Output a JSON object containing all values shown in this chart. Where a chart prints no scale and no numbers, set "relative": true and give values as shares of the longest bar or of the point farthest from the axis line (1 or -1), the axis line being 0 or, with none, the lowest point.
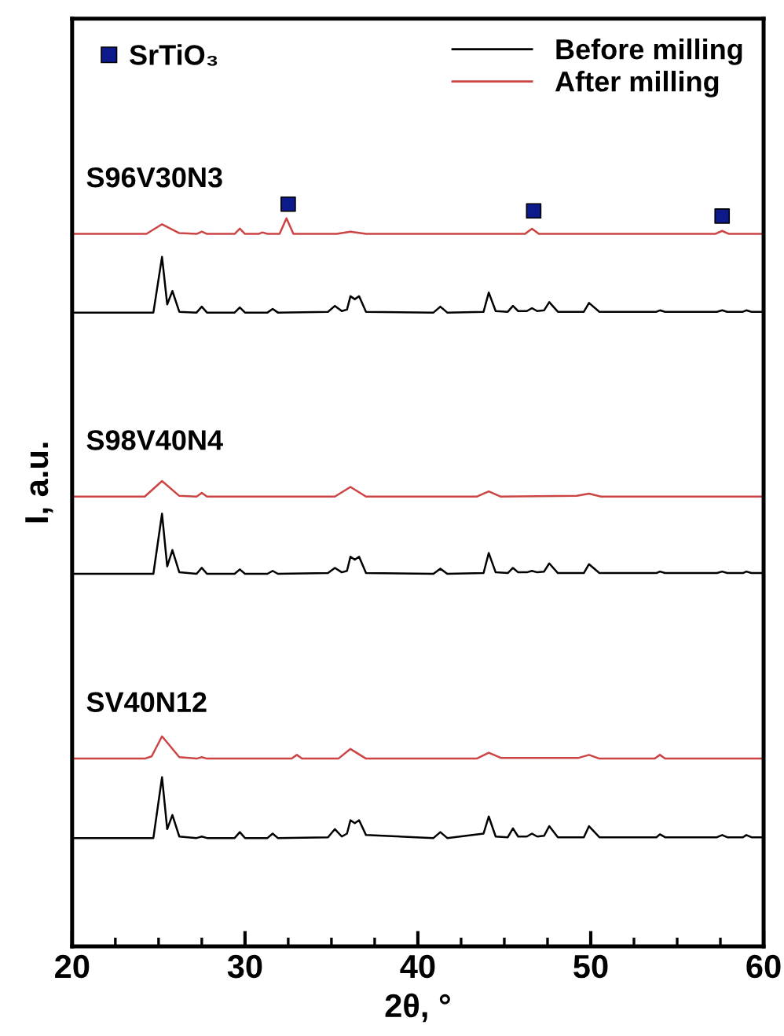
{
  "chart_data": {
    "type": "line",
    "relative": true,
    "xlabel": "2θ, °",
    "ylabel": "I, a.u.",
    "xlim": [
      20,
      60
    ],
    "xticks": [
      20,
      30,
      40,
      50,
      60
    ],
    "tick_labels": "x",
    "legend": "top",
    "grid": false,
    "marker": "none",
    "line_style": "solid",
    "annotations": [
      "S96V30N3",
      "S98V40N4",
      "SV40N12"
    ],
    "series": [
      {
        "name": "Before milling",
        "color": "#000000",
        "x": [
          20,
          24.7,
          25.2,
          25.5,
          25.8,
          26.2,
          27.2,
          27.5,
          27.8,
          29.4,
          29.7,
          30,
          31.3,
          31.6,
          31.9,
          34.8,
          35.2,
          35.6,
          35.9,
          36.1,
          36.35,
          36.6,
          37,
          40.9,
          41.3,
          41.7,
          43.8,
          44.1,
          44.5,
          45.2,
          45.5,
          45.8,
          46.3,
          46.6,
          46.9,
          47.3,
          47.6,
          48.1,
          49.6,
          49.9,
          50.5,
          53.8,
          54,
          54.3,
          57.3,
          57.6,
          57.9,
          58.8,
          59,
          59.3,
          60
        ],
        "values": [
          0.854,
          0.854,
          0.929,
          0.865,
          0.883,
          0.855,
          0.854,
          0.862,
          0.854,
          0.854,
          0.861,
          0.854,
          0.854,
          0.859,
          0.854,
          0.855,
          0.863,
          0.856,
          0.858,
          0.876,
          0.872,
          0.876,
          0.855,
          0.854,
          0.862,
          0.854,
          0.855,
          0.881,
          0.856,
          0.855,
          0.863,
          0.856,
          0.856,
          0.86,
          0.856,
          0.857,
          0.868,
          0.855,
          0.855,
          0.867,
          0.855,
          0.855,
          0.857,
          0.855,
          0.855,
          0.857,
          0.855,
          0.855,
          0.857,
          0.855,
          0.855
        ]
      },
      {
        "name": "After milling",
        "color": "#cc4444",
        "x": [
          20,
          24.3,
          25.2,
          26.2,
          27.2,
          27.5,
          27.8,
          29.4,
          29.7,
          30,
          30.8,
          31,
          31.3,
          32,
          32.4,
          32.8,
          35.3,
          36.1,
          37,
          46.2,
          46.6,
          47,
          57.2,
          57.6,
          58,
          60
        ],
        "values": [
          0.96,
          0.96,
          0.973,
          0.961,
          0.96,
          0.963,
          0.96,
          0.96,
          0.967,
          0.96,
          0.96,
          0.962,
          0.96,
          0.96,
          0.981,
          0.96,
          0.96,
          0.963,
          0.96,
          0.96,
          0.967,
          0.96,
          0.96,
          0.964,
          0.96,
          0.96
        ]
      },
      {
        "color": "#000000",
        "x": [
          20,
          24.7,
          25.2,
          25.5,
          25.8,
          26.2,
          27.2,
          27.5,
          27.8,
          29.4,
          29.7,
          30,
          31.3,
          31.6,
          31.9,
          34.8,
          35.2,
          35.6,
          35.9,
          36.1,
          36.35,
          36.6,
          37,
          40.9,
          41.3,
          41.7,
          43.8,
          44.1,
          44.5,
          45.2,
          45.5,
          45.8,
          46.3,
          46.6,
          46.9,
          47.3,
          47.6,
          48.1,
          49.6,
          49.9,
          50.5,
          53.8,
          54,
          54.3,
          57.3,
          57.6,
          57.9,
          58.8,
          59,
          59.3,
          60
        ],
        "values": [
          0.502,
          0.502,
          0.583,
          0.512,
          0.534,
          0.504,
          0.502,
          0.51,
          0.502,
          0.502,
          0.508,
          0.502,
          0.502,
          0.506,
          0.502,
          0.503,
          0.51,
          0.504,
          0.506,
          0.525,
          0.521,
          0.525,
          0.503,
          0.502,
          0.509,
          0.502,
          0.503,
          0.53,
          0.504,
          0.503,
          0.51,
          0.504,
          0.504,
          0.506,
          0.504,
          0.505,
          0.516,
          0.503,
          0.503,
          0.515,
          0.503,
          0.503,
          0.505,
          0.503,
          0.503,
          0.505,
          0.503,
          0.503,
          0.505,
          0.503,
          0.503
        ]
      },
      {
        "color": "#cc4444",
        "x": [
          20,
          24.2,
          25.2,
          26.2,
          27.2,
          27.5,
          27.8,
          35.2,
          36.1,
          37,
          43.4,
          44.1,
          44.8,
          49.2,
          49.9,
          50.6,
          60
        ],
        "values": [
          0.606,
          0.606,
          0.627,
          0.607,
          0.606,
          0.611,
          0.606,
          0.606,
          0.619,
          0.606,
          0.606,
          0.613,
          0.606,
          0.607,
          0.61,
          0.606,
          0.606
        ]
      },
      {
        "color": "#000000",
        "x": [
          20,
          24.7,
          25.2,
          25.5,
          25.8,
          26.2,
          27.2,
          27.5,
          27.8,
          29.4,
          29.7,
          30,
          31.3,
          31.6,
          31.9,
          34.8,
          35.2,
          35.6,
          35.9,
          36.1,
          36.35,
          36.6,
          37,
          40.9,
          41.3,
          41.7,
          43.8,
          44.1,
          44.5,
          45.2,
          45.5,
          45.8,
          46.3,
          46.6,
          46.9,
          47.3,
          47.6,
          48.1,
          49.6,
          49.9,
          50.5,
          53.8,
          54,
          54.3,
          57.3,
          57.6,
          57.9,
          58.8,
          59,
          59.3,
          60
        ],
        "values": [
          0.146,
          0.146,
          0.228,
          0.158,
          0.177,
          0.148,
          0.146,
          0.148,
          0.146,
          0.146,
          0.154,
          0.146,
          0.146,
          0.152,
          0.146,
          0.147,
          0.158,
          0.148,
          0.152,
          0.17,
          0.166,
          0.17,
          0.15,
          0.146,
          0.154,
          0.146,
          0.152,
          0.175,
          0.148,
          0.147,
          0.159,
          0.148,
          0.148,
          0.152,
          0.148,
          0.149,
          0.162,
          0.147,
          0.147,
          0.162,
          0.147,
          0.147,
          0.151,
          0.147,
          0.147,
          0.15,
          0.147,
          0.147,
          0.15,
          0.147,
          0.147
        ]
      },
      {
        "color": "#cc4444",
        "x": [
          20,
          24.2,
          24.6,
          25.2,
          26.2,
          27.2,
          27.5,
          27.8,
          32.7,
          33,
          33.3,
          35.4,
          36.1,
          37,
          43.4,
          44.1,
          44.8,
          49.3,
          49.9,
          50.5,
          53.7,
          54,
          54.3,
          60
        ],
        "values": [
          0.253,
          0.253,
          0.256,
          0.283,
          0.255,
          0.253,
          0.255,
          0.253,
          0.253,
          0.258,
          0.253,
          0.253,
          0.266,
          0.253,
          0.253,
          0.261,
          0.254,
          0.254,
          0.258,
          0.253,
          0.253,
          0.258,
          0.253,
          0.253
        ]
      },
      {
        "name": "SrTiO₃",
        "type": "scatter",
        "marker": "square",
        "color": "#0d1a8c",
        "x": [
          32.5,
          46.7,
          57.6
        ],
        "values": [
          1.0,
          0.991,
          0.984
        ]
      }
    ]
  }
}
